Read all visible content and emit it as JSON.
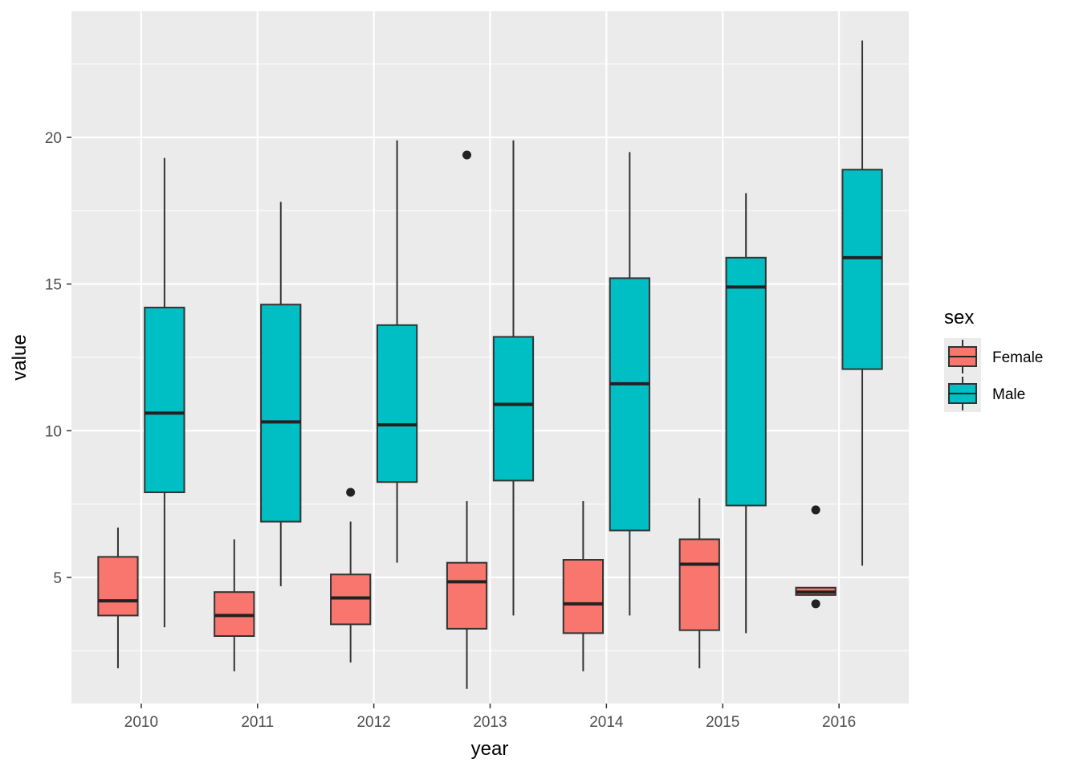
{
  "chart_data": {
    "type": "boxplot",
    "xlabel": "year",
    "ylabel": "value",
    "categories": [
      "2010",
      "2011",
      "2012",
      "2013",
      "2014",
      "2015",
      "2016"
    ],
    "y_ticks": [
      5,
      10,
      15,
      20
    ],
    "ylim": [
      0.7,
      24.3
    ],
    "grid": true,
    "legend": {
      "title": "sex",
      "position": "right"
    },
    "series": [
      {
        "name": "Female",
        "color": "#F8766D",
        "boxes": [
          {
            "whisker_low": 1.9,
            "q1": 3.7,
            "median": 4.2,
            "q3": 5.7,
            "whisker_high": 6.7,
            "outliers": []
          },
          {
            "whisker_low": 1.8,
            "q1": 3.0,
            "median": 3.7,
            "q3": 4.5,
            "whisker_high": 6.3,
            "outliers": []
          },
          {
            "whisker_low": 2.1,
            "q1": 3.4,
            "median": 4.3,
            "q3": 5.1,
            "whisker_high": 6.9,
            "outliers": [
              7.9
            ]
          },
          {
            "whisker_low": 1.2,
            "q1": 3.25,
            "median": 4.85,
            "q3": 5.5,
            "whisker_high": 7.6,
            "outliers": [
              19.4
            ]
          },
          {
            "whisker_low": 1.8,
            "q1": 3.1,
            "median": 4.1,
            "q3": 5.6,
            "whisker_high": 7.6,
            "outliers": []
          },
          {
            "whisker_low": 1.9,
            "q1": 3.2,
            "median": 5.45,
            "q3": 6.3,
            "whisker_high": 7.7,
            "outliers": []
          },
          {
            "whisker_low": 4.4,
            "q1": 4.4,
            "median": 4.5,
            "q3": 4.65,
            "whisker_high": 4.65,
            "outliers": [
              7.3,
              4.1
            ]
          }
        ]
      },
      {
        "name": "Male",
        "color": "#00BFC4",
        "boxes": [
          {
            "whisker_low": 3.3,
            "q1": 7.9,
            "median": 10.6,
            "q3": 14.2,
            "whisker_high": 19.3,
            "outliers": []
          },
          {
            "whisker_low": 4.7,
            "q1": 6.9,
            "median": 10.3,
            "q3": 14.3,
            "whisker_high": 17.8,
            "outliers": []
          },
          {
            "whisker_low": 5.5,
            "q1": 8.25,
            "median": 10.2,
            "q3": 13.6,
            "whisker_high": 19.9,
            "outliers": []
          },
          {
            "whisker_low": 3.7,
            "q1": 8.3,
            "median": 10.9,
            "q3": 13.2,
            "whisker_high": 19.9,
            "outliers": []
          },
          {
            "whisker_low": 3.7,
            "q1": 6.6,
            "median": 11.6,
            "q3": 15.2,
            "whisker_high": 19.5,
            "outliers": []
          },
          {
            "whisker_low": 3.1,
            "q1": 7.45,
            "median": 14.9,
            "q3": 15.9,
            "whisker_high": 18.1,
            "outliers": []
          },
          {
            "whisker_low": 5.4,
            "q1": 12.1,
            "median": 15.9,
            "q3": 18.9,
            "whisker_high": 23.3,
            "outliers": []
          }
        ]
      }
    ]
  }
}
